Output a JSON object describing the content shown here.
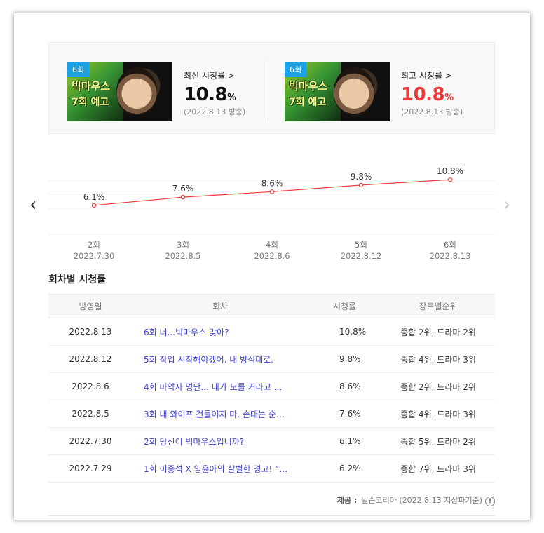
{
  "summary": {
    "latest": {
      "badge": "6회",
      "thumb_title1": "빅마우스",
      "thumb_title2": "7회 예고",
      "label": "최신 시청률 >",
      "value": "10.8",
      "unit": "%",
      "date": "(2022.8.13 방송)"
    },
    "best": {
      "badge": "6회",
      "thumb_title1": "빅마우스",
      "thumb_title2": "7회 예고",
      "label": "최고 시청률 >",
      "value": "10.8",
      "unit": "%",
      "date": "(2022.8.13 방송)"
    }
  },
  "chart_data": {
    "type": "line",
    "categories": [
      "2회",
      "3회",
      "4회",
      "5회",
      "6회"
    ],
    "dates": [
      "2022.7.30",
      "2022.8.5",
      "2022.8.6",
      "2022.8.12",
      "2022.8.13"
    ],
    "values": [
      6.1,
      7.6,
      8.6,
      9.8,
      10.8
    ],
    "value_labels": [
      "6.1%",
      "7.6%",
      "8.6%",
      "9.8%",
      "10.8%"
    ],
    "ylim": [
      3,
      13
    ],
    "grid": true,
    "line_color": "#ee3b3b"
  },
  "nav": {
    "prev": "‹",
    "next": "›"
  },
  "episodes": {
    "title": "회차별 시청률",
    "headers": [
      "방영일",
      "회차",
      "시청률",
      "장르별순위"
    ],
    "rows": [
      {
        "date": "2022.8.13",
        "title": "6회 너...빅마우스 맞아?",
        "rating": "10.8%",
        "rank": "종합 2위, 드라마 2위"
      },
      {
        "date": "2022.8.12",
        "title": "5회 작업 시작해야겠어. 내 방식대로.",
        "rating": "9.8%",
        "rank": "종합 4위, 드라마 3위"
      },
      {
        "date": "2022.8.6",
        "title": "4회 마약자 명단... 내가 모를 거라고 …",
        "rating": "8.6%",
        "rank": "종합 2위, 드라마 2위"
      },
      {
        "date": "2022.8.5",
        "title": "3회 내 와이프 건들이지 마. 손대는 순…",
        "rating": "7.6%",
        "rank": "종합 4위, 드라마 3위"
      },
      {
        "date": "2022.7.30",
        "title": "2회 당신이 빅마우스입니까?",
        "rating": "6.1%",
        "rank": "종합 5위, 드라마 2위"
      },
      {
        "date": "2022.7.29",
        "title": "1회 이종석 X 임윤아의 살벌한 경고! “…",
        "rating": "6.2%",
        "rank": "종합 7위, 드라마 3위"
      }
    ]
  },
  "source": {
    "label": "제공 :",
    "text": "닐슨코리아 (2022.8.13 지상파기준)",
    "info_icon": "!"
  },
  "colors": {
    "accent_red": "#ee3b3b",
    "badge_blue": "#1da1e5",
    "link_blue": "#3f3fd0"
  }
}
